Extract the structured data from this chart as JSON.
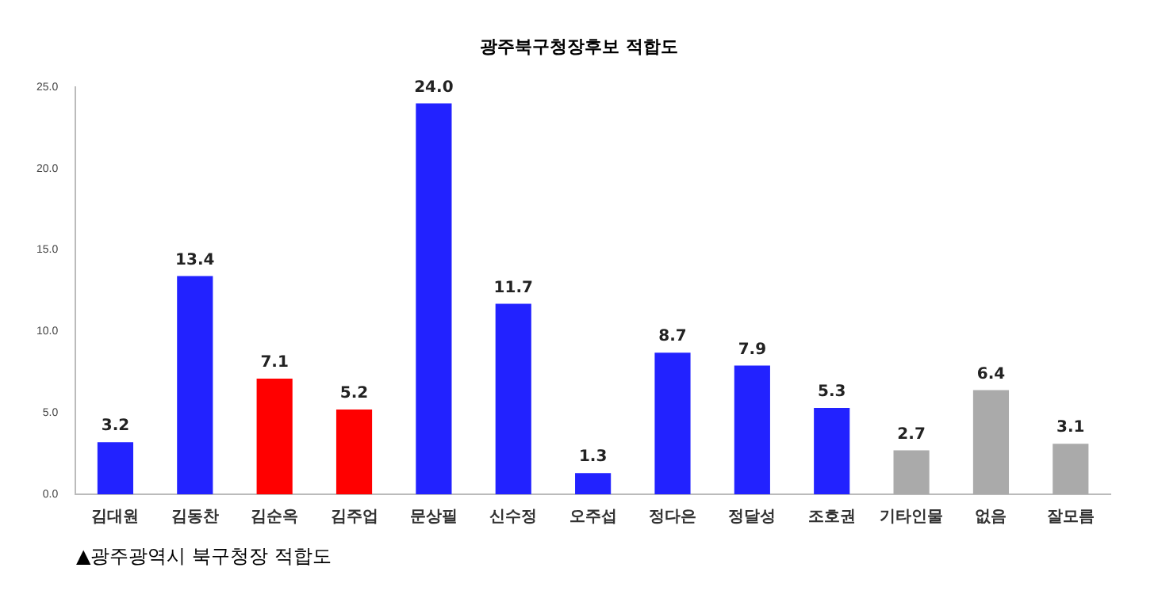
{
  "chart_data": {
    "type": "bar",
    "title": "광주북구청장후보 적합도",
    "categories": [
      "김대원",
      "김동찬",
      "김순옥",
      "김주업",
      "문상필",
      "신수정",
      "오주섭",
      "정다은",
      "정달성",
      "조호권",
      "기타인물",
      "없음",
      "잘모름"
    ],
    "values": [
      3.2,
      13.4,
      7.1,
      5.2,
      24.0,
      11.7,
      1.3,
      8.7,
      7.9,
      5.3,
      2.7,
      6.4,
      3.1
    ],
    "value_labels": [
      "3.2",
      "13.4",
      "7.1",
      "5.2",
      "24.0",
      "11.7",
      "1.3",
      "8.7",
      "7.9",
      "5.3",
      "2.7",
      "6.4",
      "3.1"
    ],
    "colors": [
      "#2222ff",
      "#2222ff",
      "#ff0000",
      "#ff0000",
      "#2222ff",
      "#2222ff",
      "#2222ff",
      "#2222ff",
      "#2222ff",
      "#2222ff",
      "#aaaaaa",
      "#aaaaaa",
      "#aaaaaa"
    ],
    "ylim": [
      0,
      25
    ],
    "yticks": [
      {
        "value": 0,
        "label": "0.0"
      },
      {
        "value": 5,
        "label": "5.0"
      },
      {
        "value": 10,
        "label": "10.0"
      },
      {
        "value": 15,
        "label": "15.0"
      },
      {
        "value": 20,
        "label": "20.0"
      },
      {
        "value": 25,
        "label": "25.0"
      }
    ],
    "grid": false,
    "legend": false,
    "annotations": [
      "▲광주광역시 북구청장 적합도"
    ]
  }
}
